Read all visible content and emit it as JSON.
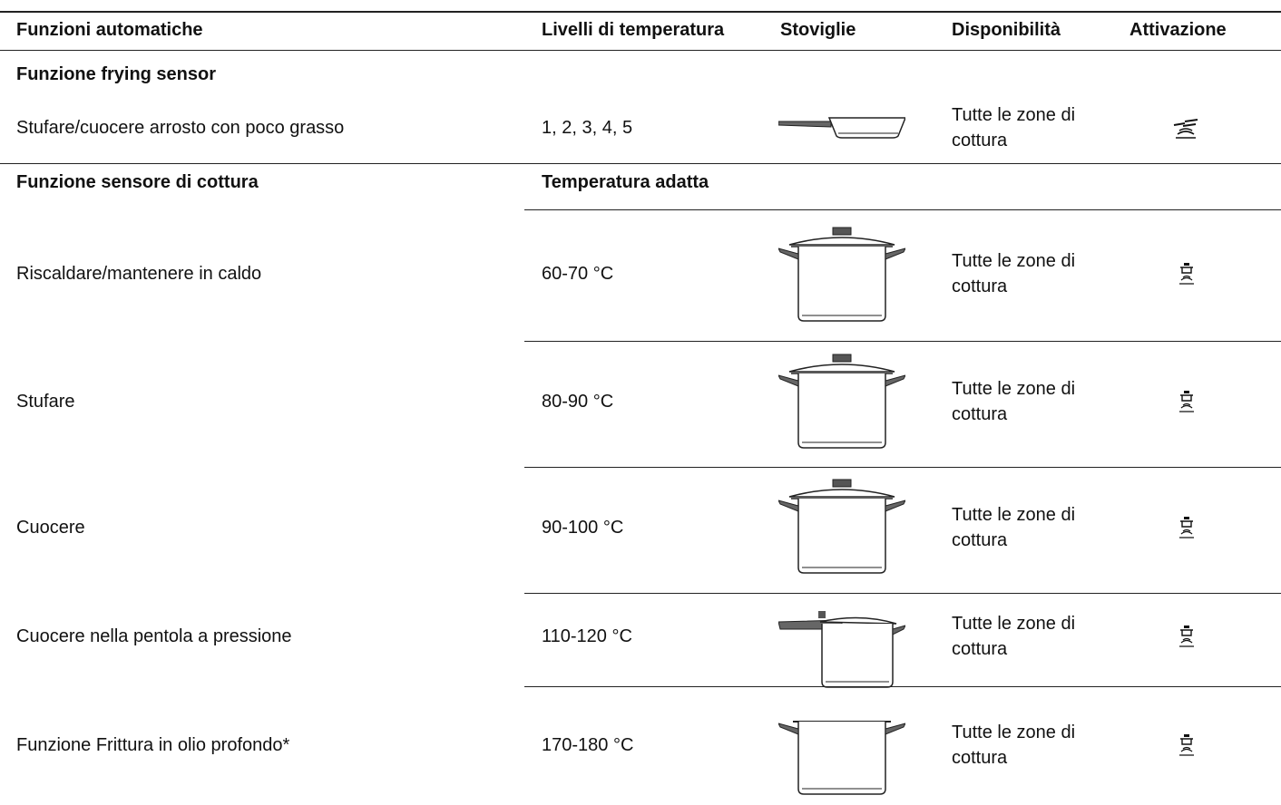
{
  "header": {
    "columns": [
      "Funzioni automatiche",
      "Livelli di temperatura",
      "Stoviglie",
      "Disponibilità",
      "Attivazione"
    ]
  },
  "sections": [
    {
      "title": "Funzione frying sensor",
      "rows": [
        {
          "function": "Stufare/cuocere arrosto con poco grasso",
          "temperature": "1, 2, 3, 4, 5",
          "availability": "Tutte le zone di cottura"
        }
      ]
    },
    {
      "title": "Funzione sensore di cottura",
      "temperature_header": "Temperatura adatta",
      "rows": [
        {
          "function": "Riscaldare/mantenere in caldo",
          "temperature": "60-70 °C",
          "availability": "Tutte le zone di cottura"
        },
        {
          "function": "Stufare",
          "temperature": "80-90 °C",
          "availability": "Tutte le zone di cottura"
        },
        {
          "function": "Cuocere",
          "temperature": "90-100 °C",
          "availability": "Tutte le zone di cottura"
        },
        {
          "function": "Cuocere nella pentola a pressione",
          "temperature": "110-120 °C",
          "availability": "Tutte le zone di cottura"
        },
        {
          "function": "Funzione Frittura in olio profondo*",
          "temperature": "170-180 °C",
          "availability": "Tutte le zone di cottura"
        }
      ]
    }
  ]
}
